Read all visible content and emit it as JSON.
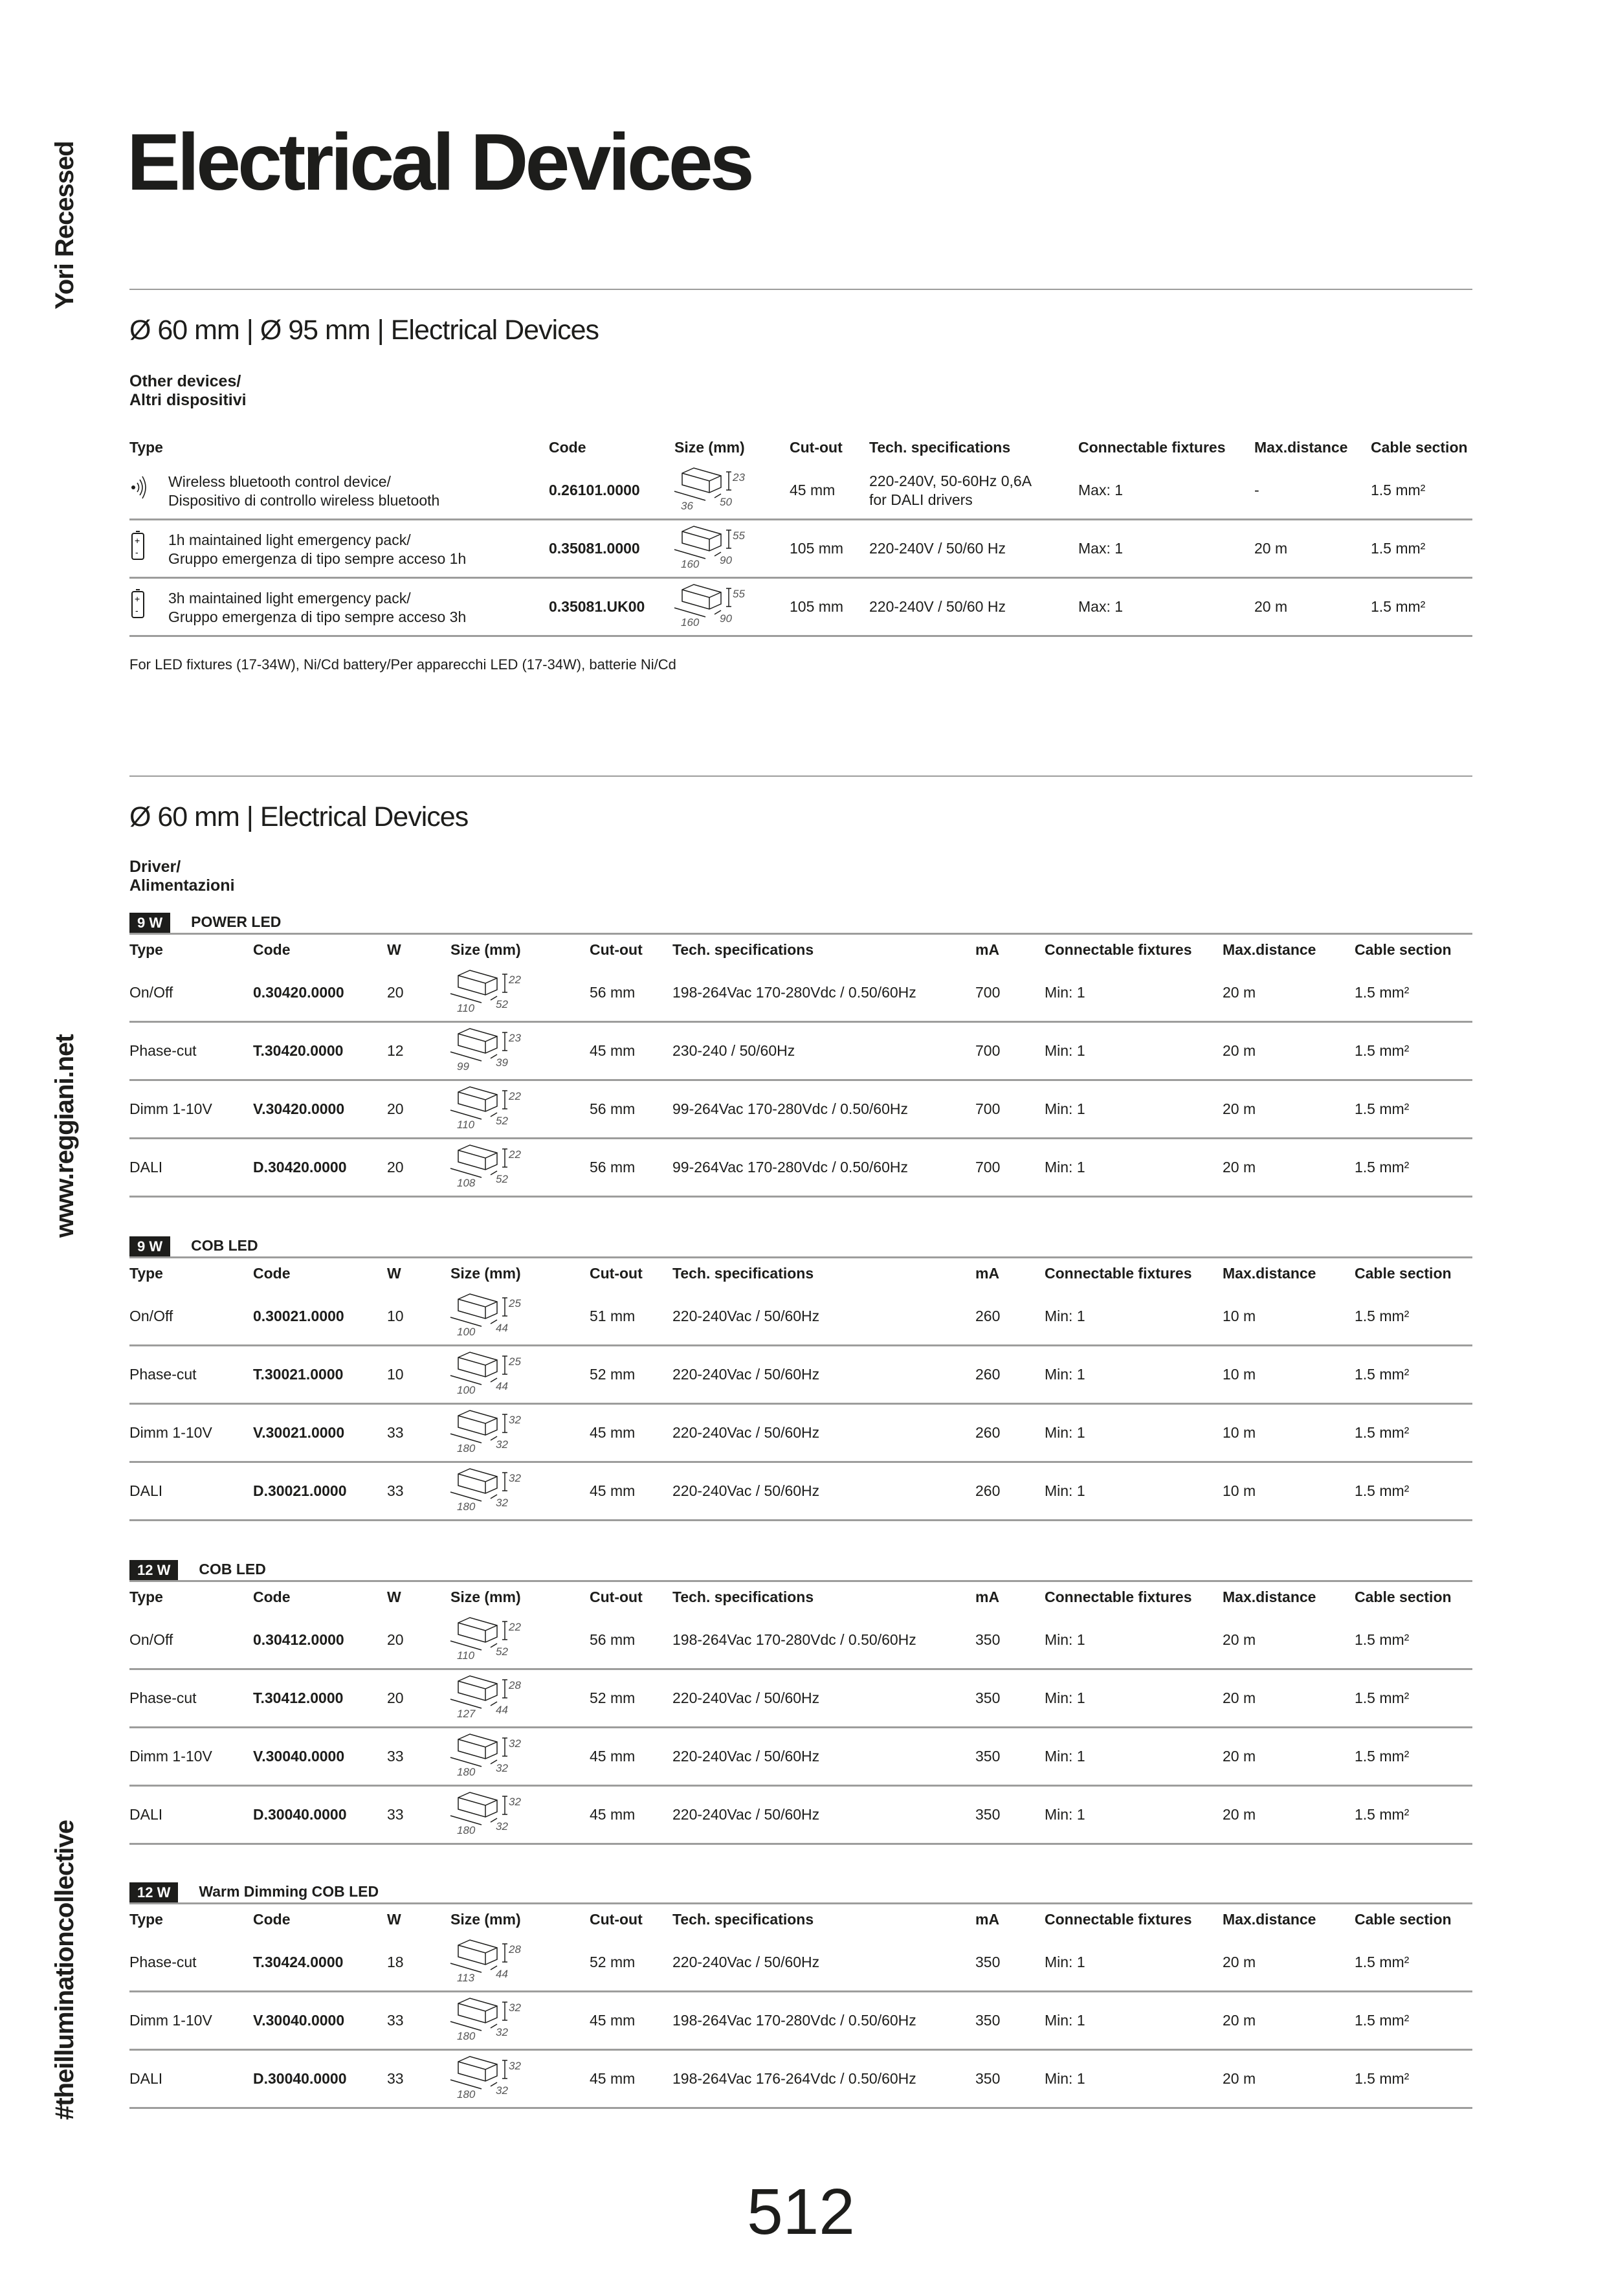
{
  "side": {
    "product": "Yori Recessed",
    "website": "www.reggiani.net",
    "hashtag": "#theilluminationcollective"
  },
  "title": "Electrical Devices",
  "section1": {
    "heading": "Ø 60 mm | Ø 95 mm | Electrical Devices",
    "subheading": [
      "Other devices/",
      "Altri dispositivi"
    ],
    "columns": [
      "Type",
      "Code",
      "Size (mm)",
      "Cut-out",
      "Tech. specifications",
      "Connectable fixtures",
      "Max.distance",
      "Cable section"
    ],
    "rows": [
      {
        "icon": "bluetooth-wireless-icon",
        "type": [
          "Wireless bluetooth control device/",
          "Dispositivo di controllo wireless bluetooth"
        ],
        "code": "0.26101.0000",
        "size": [
          "36",
          "50",
          "23"
        ],
        "cutout": "45 mm",
        "tech": [
          "220-240V, 50-60Hz 0,6A",
          "for DALI drivers"
        ],
        "fixtures": "Max: 1",
        "distance": "-",
        "cable": "1.5 mm²"
      },
      {
        "icon": "battery-icon",
        "type": [
          "1h maintained light emergency pack/",
          "Gruppo emergenza di tipo sempre acceso 1h"
        ],
        "code": "0.35081.0000",
        "size": [
          "160",
          "90",
          "55"
        ],
        "cutout": "105 mm",
        "tech": [
          "220-240V / 50/60 Hz"
        ],
        "fixtures": "Max: 1",
        "distance": "20 m",
        "cable": "1.5 mm²"
      },
      {
        "icon": "battery-icon",
        "type": [
          "3h maintained light emergency pack/",
          "Gruppo emergenza di tipo sempre acceso 3h"
        ],
        "code": "0.35081.UK00",
        "size": [
          "160",
          "90",
          "55"
        ],
        "cutout": "105 mm",
        "tech": [
          "220-240V / 50/60 Hz"
        ],
        "fixtures": "Max: 1",
        "distance": "20 m",
        "cable": "1.5 mm²"
      }
    ],
    "footnote": "For LED fixtures (17-34W), Ni/Cd battery/Per apparecchi LED (17-34W), batterie Ni/Cd"
  },
  "section2": {
    "heading": "Ø 60 mm | Electrical Devices",
    "subheading": [
      "Driver/",
      "Alimentazioni"
    ],
    "columns": [
      "Type",
      "Code",
      "W",
      "Size (mm)",
      "Cut-out",
      "Tech. specifications",
      "mA",
      "Connectable fixtures",
      "Max.distance",
      "Cable section"
    ],
    "groups": [
      {
        "badge": "9 W",
        "label": "POWER LED",
        "rows": [
          [
            "On/Off",
            "0.30420.0000",
            "20",
            [
              "110",
              "52",
              "22"
            ],
            "56 mm",
            "198-264Vac 170-280Vdc / 0.50/60Hz",
            "700",
            "Min: 1",
            "20 m",
            "1.5 mm²"
          ],
          [
            "Phase-cut",
            "T.30420.0000",
            "12",
            [
              "99",
              "39",
              "23"
            ],
            "45 mm",
            "230-240 / 50/60Hz",
            "700",
            "Min: 1",
            "20 m",
            "1.5 mm²"
          ],
          [
            "Dimm 1-10V",
            "V.30420.0000",
            "20",
            [
              "110",
              "52",
              "22"
            ],
            "56 mm",
            "99-264Vac 170-280Vdc / 0.50/60Hz",
            "700",
            "Min: 1",
            "20 m",
            "1.5 mm²"
          ],
          [
            "DALI",
            "D.30420.0000",
            "20",
            [
              "108",
              "52",
              "22"
            ],
            "56 mm",
            "99-264Vac 170-280Vdc / 0.50/60Hz",
            "700",
            "Min: 1",
            "20 m",
            "1.5 mm²"
          ]
        ]
      },
      {
        "badge": "9 W",
        "label": "COB LED",
        "rows": [
          [
            "On/Off",
            "0.30021.0000",
            "10",
            [
              "100",
              "44",
              "25"
            ],
            "51 mm",
            "220-240Vac / 50/60Hz",
            "260",
            "Min: 1",
            "10 m",
            "1.5 mm²"
          ],
          [
            "Phase-cut",
            "T.30021.0000",
            "10",
            [
              "100",
              "44",
              "25"
            ],
            "52 mm",
            "220-240Vac / 50/60Hz",
            "260",
            "Min: 1",
            "10 m",
            "1.5 mm²"
          ],
          [
            "Dimm 1-10V",
            "V.30021.0000",
            "33",
            [
              "180",
              "32",
              "32"
            ],
            "45 mm",
            "220-240Vac / 50/60Hz",
            "260",
            "Min: 1",
            "10 m",
            "1.5 mm²"
          ],
          [
            "DALI",
            "D.30021.0000",
            "33",
            [
              "180",
              "32",
              "32"
            ],
            "45 mm",
            "220-240Vac / 50/60Hz",
            "260",
            "Min: 1",
            "10 m",
            "1.5 mm²"
          ]
        ]
      },
      {
        "badge": "12 W",
        "label": "COB LED",
        "rows": [
          [
            "On/Off",
            "0.30412.0000",
            "20",
            [
              "110",
              "52",
              "22"
            ],
            "56 mm",
            "198-264Vac 170-280Vdc / 0.50/60Hz",
            "350",
            "Min: 1",
            "20 m",
            "1.5 mm²"
          ],
          [
            "Phase-cut",
            "T.30412.0000",
            "20",
            [
              "127",
              "44",
              "28"
            ],
            "52 mm",
            "220-240Vac / 50/60Hz",
            "350",
            "Min: 1",
            "20 m",
            "1.5 mm²"
          ],
          [
            "Dimm 1-10V",
            "V.30040.0000",
            "33",
            [
              "180",
              "32",
              "32"
            ],
            "45 mm",
            "220-240Vac / 50/60Hz",
            "350",
            "Min: 1",
            "20 m",
            "1.5 mm²"
          ],
          [
            "DALI",
            "D.30040.0000",
            "33",
            [
              "180",
              "32",
              "32"
            ],
            "45 mm",
            "220-240Vac / 50/60Hz",
            "350",
            "Min: 1",
            "20 m",
            "1.5 mm²"
          ]
        ]
      },
      {
        "badge": "12 W",
        "label": "Warm Dimming COB LED",
        "rows": [
          [
            "Phase-cut",
            "T.30424.0000",
            "18",
            [
              "113",
              "44",
              "28"
            ],
            "52 mm",
            "220-240Vac / 50/60Hz",
            "350",
            "Min: 1",
            "20 m",
            "1.5 mm²"
          ],
          [
            "Dimm 1-10V",
            "V.30040.0000",
            "33",
            [
              "180",
              "32",
              "32"
            ],
            "45 mm",
            "198-264Vac 170-280Vdc / 0.50/60Hz",
            "350",
            "Min: 1",
            "20 m",
            "1.5 mm²"
          ],
          [
            "DALI",
            "D.30040.0000",
            "33",
            [
              "180",
              "32",
              "32"
            ],
            "45 mm",
            "198-264Vac 176-264Vdc / 0.50/60Hz",
            "350",
            "Min: 1",
            "20 m",
            "1.5 mm²"
          ]
        ]
      }
    ]
  },
  "page_number": "512"
}
